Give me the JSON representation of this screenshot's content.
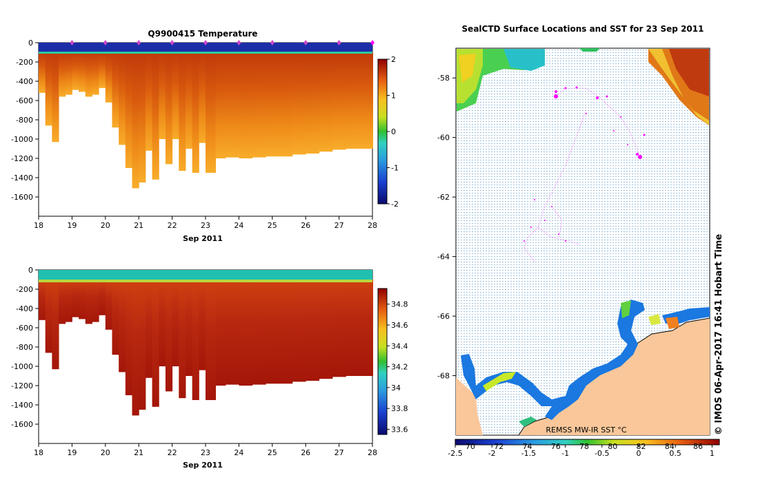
{
  "chart_data": [
    {
      "type": "heatmap",
      "title": "Q9900415  Temperature",
      "xlabel": "Sep 2011",
      "x_ticks": [
        "18",
        "19",
        "20",
        "21",
        "22",
        "23",
        "24",
        "25",
        "26",
        "27",
        "28"
      ],
      "xlim": [
        18,
        28
      ],
      "y_ticks": [
        "0",
        "-200",
        "-400",
        "-600",
        "-800",
        "-1000",
        "-1200",
        "-1400",
        "-1600"
      ],
      "ylim": [
        -1800,
        0
      ],
      "colorbar_ticks": [
        "2",
        "1",
        "0",
        "-1",
        "-2"
      ],
      "colorbar_range": [
        -2,
        2
      ],
      "colors": {
        "surface": "#1b2ea8",
        "deep": "#c0390a",
        "mid": "#e07814",
        "bottom": "#f5a62a"
      },
      "surface_markers_days": [
        19,
        20,
        21,
        22,
        23,
        24,
        25,
        26,
        27,
        28
      ],
      "profile_days": [
        18,
        18.2,
        18.4,
        18.6,
        18.8,
        19,
        19.2,
        19.4,
        19.6,
        19.8,
        20,
        20.2,
        20.4,
        20.6,
        20.8,
        21,
        21.2,
        21.4,
        21.6,
        21.8,
        22,
        22.2,
        22.4,
        22.6,
        22.8,
        23,
        23.3,
        23.6,
        24,
        24.4,
        24.8,
        25.2,
        25.6,
        26,
        26.4,
        26.8,
        27.2,
        27.6,
        28
      ],
      "profile_depths": [
        -520,
        -860,
        -1030,
        -560,
        -540,
        -490,
        -510,
        -560,
        -540,
        -470,
        -620,
        -880,
        -1060,
        -1300,
        -1510,
        -1450,
        -1120,
        -1420,
        -1000,
        -1260,
        -1000,
        -1330,
        -1100,
        -1350,
        -1040,
        -1350,
        -1200,
        -1190,
        -1200,
        -1190,
        -1180,
        -1180,
        -1160,
        -1150,
        -1130,
        -1110,
        -1100,
        -1100,
        -1100
      ]
    },
    {
      "type": "heatmap",
      "title": "",
      "xlabel": "Sep 2011",
      "x_ticks": [
        "18",
        "19",
        "20",
        "21",
        "22",
        "23",
        "24",
        "25",
        "26",
        "27",
        "28"
      ],
      "xlim": [
        18,
        28
      ],
      "y_ticks": [
        "0",
        "-200",
        "-400",
        "-600",
        "-800",
        "-1000",
        "-1200",
        "-1400",
        "-1600"
      ],
      "ylim": [
        -1800,
        0
      ],
      "colorbar_ticks": [
        "34.8",
        "34.6",
        "34.4",
        "34.2",
        "34",
        "33.8",
        "33.6"
      ],
      "colorbar_range": [
        33.55,
        34.95
      ],
      "colors": {
        "surface": "#18c0b0",
        "deep": "#b02010",
        "mid": "#c8300a",
        "bottom": "#a81808"
      }
    },
    {
      "type": "heatmap",
      "title": "SealCTD Surface Locations and SST for 23 Sep 2011",
      "y_ticks": [
        "-58",
        "-60",
        "-62",
        "-64",
        "-66",
        "-68"
      ],
      "ylim": [
        -70,
        -57
      ],
      "colorbar_ticks": [
        "-2.5",
        "-2",
        "-1.5",
        "-1",
        "-0.5",
        "0",
        "0.5",
        "1"
      ],
      "colorbar_range": [
        -2.5,
        1.1
      ],
      "colorbar_lon_labels": [
        "70",
        "72",
        "74",
        "76",
        "78",
        "80",
        "82",
        "84",
        "86"
      ],
      "caption": "REMSS MW-IR SST °C",
      "credit": "© IMOS 06-Apr-2017 16:41 Hobart Time",
      "colors": {
        "land": "#f9c79a",
        "seal": "#ff00ff",
        "ocean_grid": "#8ab4d8"
      }
    }
  ]
}
